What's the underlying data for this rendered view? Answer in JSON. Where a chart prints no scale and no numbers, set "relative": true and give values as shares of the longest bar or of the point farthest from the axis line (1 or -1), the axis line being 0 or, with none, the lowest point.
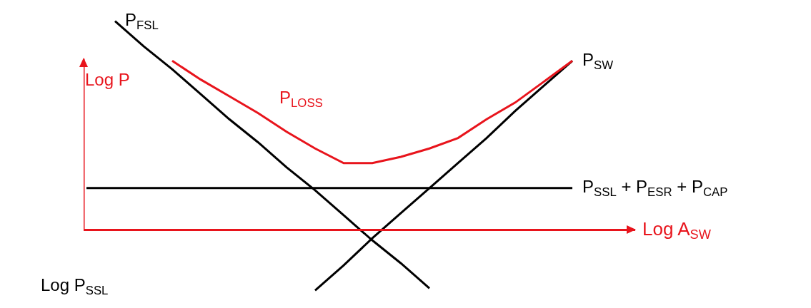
{
  "chart_data": {
    "type": "line",
    "relative": true,
    "ylabel": "Log P",
    "xlabel": "Log A$_{SW}$",
    "grid": false,
    "legend": false,
    "marker": "none",
    "line_style": "solid",
    "categories": [
      null,
      null,
      null,
      null,
      null,
      null,
      null,
      null,
      null,
      null,
      null,
      null,
      null,
      null,
      null,
      null,
      null,
      null
    ],
    "annotations": [
      "Log P$_{SSL}$"
    ],
    "ref_lines": [
      {
        "axis": "y",
        "value": 0,
        "color": "#e8141c",
        "line_style": "solid"
      }
    ],
    "series": [
      {
        "name": "P$_{FSL}$",
        "color": "#000000",
        "values": [
          null,
          1.0,
          0.88,
          0.77,
          0.65,
          0.53,
          0.42,
          0.3,
          0.19,
          0.07,
          -0.05,
          -0.16,
          -0.28,
          null,
          null,
          null,
          null,
          null
        ]
      },
      {
        "name": "P$_{SW}$",
        "color": "#000000",
        "values": [
          null,
          null,
          null,
          null,
          null,
          null,
          null,
          null,
          -0.29,
          -0.17,
          -0.04,
          0.08,
          0.2,
          0.32,
          0.44,
          0.57,
          0.69,
          0.81
        ]
      },
      {
        "name": "P$_{SSL}$ + P$_{ESR}$ + P$_{CAP}$",
        "color": "#000000",
        "values": [
          0.2,
          0.2,
          0.2,
          0.2,
          0.2,
          0.2,
          0.2,
          0.2,
          0.2,
          0.2,
          0.2,
          0.2,
          0.2,
          0.2,
          0.2,
          0.2,
          0.2,
          0.2
        ]
      },
      {
        "name": "P$_{LOSS}$",
        "color": "#e8141c",
        "values": [
          null,
          null,
          null,
          0.81,
          0.72,
          0.64,
          0.56,
          0.47,
          0.39,
          0.32,
          0.32,
          0.35,
          0.39,
          0.44,
          0.53,
          0.61,
          0.71,
          0.81
        ]
      }
    ]
  }
}
